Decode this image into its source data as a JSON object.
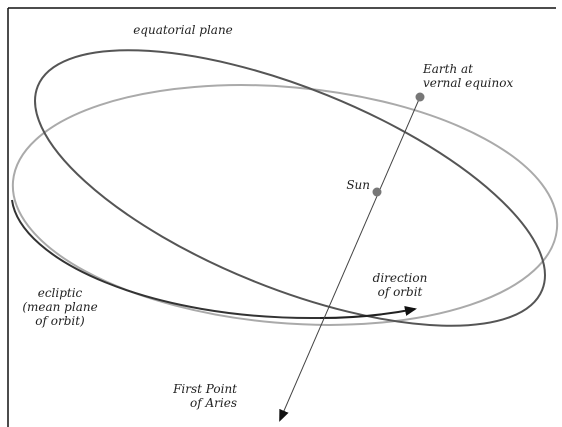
{
  "labels": {
    "equatorial_plane": [
      "equatorial plane"
    ],
    "earth": [
      "Earth at",
      "vernal equinox"
    ],
    "sun": [
      "Sun"
    ],
    "direction": [
      "direction",
      "of orbit"
    ],
    "ecliptic": [
      "ecliptic",
      "(mean plane",
      "of orbit)"
    ],
    "aries": [
      "First Point",
      "of Aries"
    ]
  }
}
